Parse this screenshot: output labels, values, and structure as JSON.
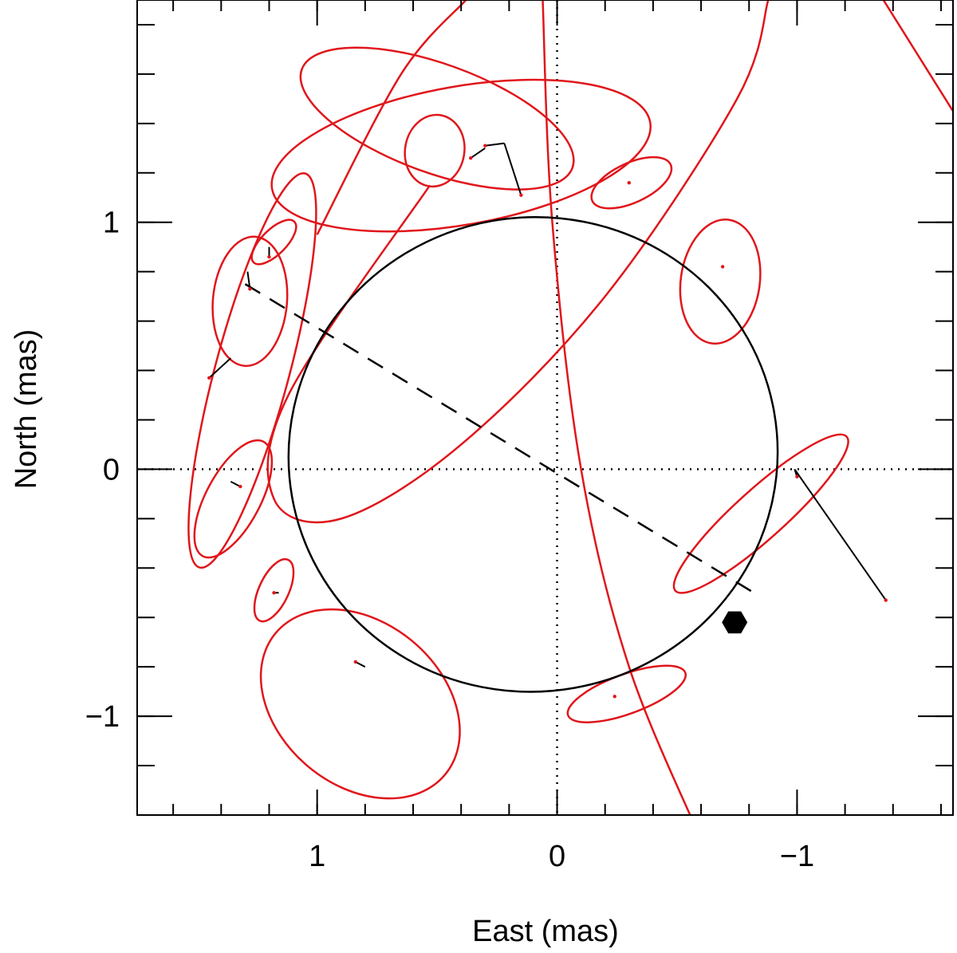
{
  "chart_data": {
    "type": "scatter",
    "title": "",
    "xlabel": "East (mas)",
    "ylabel": "North (mas)",
    "xlim": [
      1.75,
      -1.65
    ],
    "ylim": [
      -1.4,
      1.9
    ],
    "x_ticks": [
      {
        "value": 1,
        "label": "1"
      },
      {
        "value": 0,
        "label": "0"
      },
      {
        "value": -1,
        "label": "−1"
      }
    ],
    "y_ticks": [
      {
        "value": 1,
        "label": "1"
      },
      {
        "value": 0,
        "label": "0"
      },
      {
        "value": -1,
        "label": "−1"
      }
    ],
    "minor_tick_step": 0.2,
    "zero_lines": "dotted",
    "colors": {
      "orbit": "#000000",
      "error_ellipse": "#e0161b",
      "residual": "#000000",
      "axes": "#000000"
    },
    "orbit": {
      "description_points": [],
      "center": [
        0.1,
        0.06
      ],
      "semi_axis_a": 1.02,
      "semi_axis_b": 0.96,
      "rotation_deg": 10
    },
    "line_of_nodes": {
      "from": [
        1.3,
        0.75
      ],
      "to": [
        -0.82,
        -0.5
      ],
      "style": "dashed"
    },
    "current_position_marker": {
      "x": -0.74,
      "y": -0.62,
      "shape": "hexagon"
    },
    "measurements": [
      {
        "x": 1.45,
        "y": 0.37,
        "orbit_x": 1.36,
        "orbit_y": 0.45,
        "ellipse": {
          "cx": 1.27,
          "cy": 0.4,
          "a": 0.85,
          "b": 0.15,
          "angle": 75
        }
      },
      {
        "x": 1.28,
        "y": 0.73,
        "orbit_x": 1.29,
        "orbit_y": 0.8,
        "ellipse": {
          "cx": 1.28,
          "cy": 0.68,
          "a": 0.27,
          "b": 0.15,
          "angle": 85
        }
      },
      {
        "x": 1.2,
        "y": 0.86,
        "orbit_x": 1.2,
        "orbit_y": 0.9,
        "ellipse": {
          "cx": 1.18,
          "cy": 0.92,
          "a": 0.12,
          "b": 0.05,
          "angle": 45
        }
      },
      {
        "x": 0.36,
        "y": 1.26,
        "orbit_x": 0.3,
        "orbit_y": 1.3,
        "ellipse": {
          "cx": 0.51,
          "cy": 1.29,
          "a": 0.15,
          "b": 0.12,
          "angle": 80
        }
      },
      {
        "x": 0.3,
        "y": 1.31,
        "orbit_x": 0.22,
        "orbit_y": 1.32,
        "ellipse": {
          "cx": 0.5,
          "cy": 1.42,
          "a": 0.6,
          "b": 0.22,
          "angle": -20
        }
      },
      {
        "x": 0.15,
        "y": 1.11,
        "orbit_x": 0.22,
        "orbit_y": 1.32,
        "ellipse": {
          "cx": 0.4,
          "cy": 1.27,
          "a": 0.8,
          "b": 0.28,
          "angle": 10
        }
      },
      {
        "x": -0.3,
        "y": 1.16,
        "orbit_x": -0.3,
        "orbit_y": 1.16,
        "ellipse": {
          "cx": -0.31,
          "cy": 1.16,
          "a": 0.18,
          "b": 0.08,
          "angle": 25
        }
      },
      {
        "x": -0.69,
        "y": 0.82,
        "orbit_x": -0.69,
        "orbit_y": 0.82,
        "ellipse": {
          "cx": -0.68,
          "cy": 0.76,
          "a": 0.26,
          "b": 0.16,
          "angle": 82
        }
      },
      {
        "x": -1.0,
        "y": -0.03,
        "orbit_x": -0.99,
        "orbit_y": 0.0,
        "ellipse": {
          "cx": -0.85,
          "cy": -0.18,
          "a": 0.48,
          "b": 0.1,
          "angle": 42
        }
      },
      {
        "x": -1.37,
        "y": -0.53,
        "orbit_x": -0.99,
        "orbit_y": 0.0,
        "ellipse": null
      },
      {
        "x": -0.24,
        "y": -0.92,
        "orbit_x": -0.24,
        "orbit_y": -0.92,
        "ellipse": {
          "cx": -0.29,
          "cy": -0.91,
          "a": 0.26,
          "b": 0.08,
          "angle": 20
        }
      },
      {
        "x": 0.84,
        "y": -0.78,
        "orbit_x": 0.8,
        "orbit_y": -0.8,
        "ellipse": {
          "cx": 0.82,
          "cy": -0.95,
          "a": 0.46,
          "b": 0.33,
          "angle": -40
        }
      },
      {
        "x": 1.18,
        "y": -0.5,
        "orbit_x": 1.16,
        "orbit_y": -0.5,
        "ellipse": {
          "cx": 1.18,
          "cy": -0.49,
          "a": 0.14,
          "b": 0.06,
          "angle": 65
        }
      },
      {
        "x": 1.32,
        "y": -0.07,
        "orbit_x": 1.36,
        "orbit_y": -0.05,
        "ellipse": {
          "cx": 1.35,
          "cy": -0.12,
          "a": 0.27,
          "b": 0.11,
          "angle": 62
        }
      }
    ],
    "long_arcs": [
      {
        "points": [
          [
            0.53,
            1.15
          ],
          [
            1.12,
            0.3
          ],
          [
            1.18,
            -0.12
          ],
          [
            0.9,
            -0.2
          ],
          [
            0.4,
            0.1
          ],
          [
            -0.2,
            0.7
          ],
          [
            -0.75,
            1.5
          ],
          [
            -0.88,
            1.9
          ]
        ]
      },
      {
        "points": [
          [
            1.0,
            0.95
          ],
          [
            0.65,
            1.6
          ],
          [
            0.38,
            1.9
          ]
        ]
      },
      {
        "points": [
          [
            0.06,
            1.9
          ],
          [
            0.02,
            1.0
          ],
          [
            -0.1,
            0.0
          ],
          [
            -0.3,
            -0.8
          ],
          [
            -0.6,
            -1.5
          ]
        ]
      },
      {
        "points": [
          [
            -1.36,
            1.9
          ],
          [
            -1.65,
            1.45
          ]
        ]
      }
    ]
  }
}
